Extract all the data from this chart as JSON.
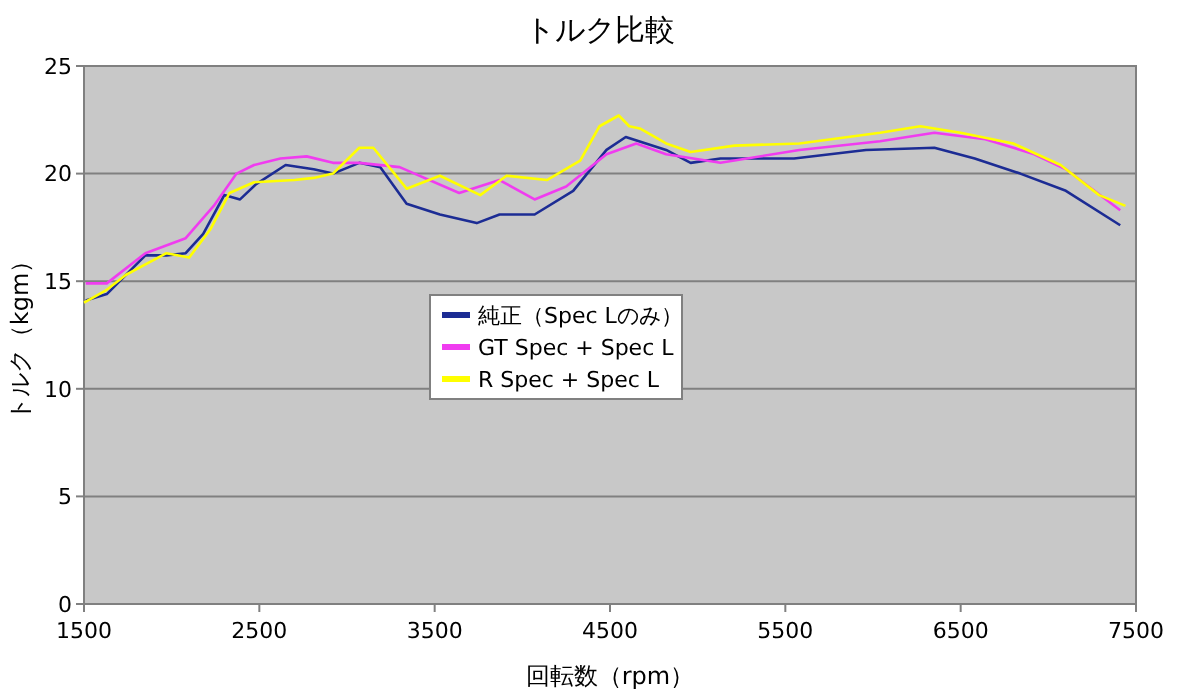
{
  "chart_data": {
    "type": "line",
    "title": "トルク比較",
    "xlabel": "回転数（rpm）",
    "ylabel": "トルク（kgm）",
    "xlim": [
      1500,
      7500
    ],
    "xticks": [
      1500,
      2500,
      3500,
      4500,
      5500,
      6500,
      7500
    ],
    "ylim": [
      0,
      25
    ],
    "yticks": [
      0,
      5,
      10,
      15,
      20,
      25
    ],
    "grid": "y",
    "legend": "center",
    "marker": "none",
    "line_style": "solid",
    "series": [
      {
        "name": "純正（Spec Lのみ）",
        "color": "#1c2c94",
        "x": [
          1510,
          1630,
          1850,
          1970,
          2080,
          2180,
          2300,
          2390,
          2480,
          2650,
          2810,
          2920,
          3070,
          3190,
          3340,
          3530,
          3740,
          3870,
          4070,
          4290,
          4480,
          4590,
          4820,
          4960,
          5130,
          5550,
          5960,
          6350,
          6580,
          6840,
          7100,
          7410
        ],
        "values": [
          14.1,
          14.4,
          16.2,
          16.2,
          16.3,
          17.2,
          19.0,
          18.8,
          19.5,
          20.4,
          20.2,
          20.0,
          20.5,
          20.3,
          18.6,
          18.1,
          17.7,
          18.1,
          18.1,
          19.2,
          21.1,
          21.7,
          21.1,
          20.5,
          20.7,
          20.7,
          21.1,
          21.2,
          20.7,
          20.0,
          19.2,
          17.6
        ]
      },
      {
        "name": "GT Spec + Spec L",
        "color": "#f03cf0",
        "x": [
          1510,
          1630,
          1850,
          2080,
          2240,
          2370,
          2470,
          2620,
          2770,
          2920,
          3070,
          3300,
          3640,
          3870,
          4070,
          4250,
          4480,
          4650,
          4820,
          5130,
          5580,
          6040,
          6350,
          6640,
          6920,
          7100,
          7410
        ],
        "values": [
          14.9,
          14.9,
          16.3,
          17.0,
          18.5,
          20.0,
          20.4,
          20.7,
          20.8,
          20.5,
          20.5,
          20.3,
          19.1,
          19.7,
          18.8,
          19.4,
          20.9,
          21.4,
          20.9,
          20.5,
          21.1,
          21.5,
          21.9,
          21.6,
          20.9,
          20.2,
          18.3
        ]
      },
      {
        "name": "R Spec + Spec L",
        "color": "#ffff00",
        "x": [
          1500,
          1630,
          1740,
          1970,
          2100,
          2220,
          2330,
          2470,
          2700,
          2810,
          2920,
          3070,
          3150,
          3340,
          3530,
          3760,
          3910,
          4140,
          4330,
          4440,
          4550,
          4610,
          4670,
          4820,
          4960,
          5210,
          5580,
          6040,
          6270,
          6500,
          6800,
          7070,
          7290,
          7440
        ],
        "values": [
          14.0,
          14.6,
          15.3,
          16.3,
          16.1,
          17.4,
          19.1,
          19.6,
          19.7,
          19.8,
          20.0,
          21.2,
          21.2,
          19.3,
          19.9,
          19.0,
          19.9,
          19.7,
          20.6,
          22.2,
          22.7,
          22.2,
          22.1,
          21.4,
          21.0,
          21.3,
          21.4,
          21.9,
          22.2,
          21.9,
          21.4,
          20.4,
          19.0,
          18.5
        ]
      }
    ]
  }
}
